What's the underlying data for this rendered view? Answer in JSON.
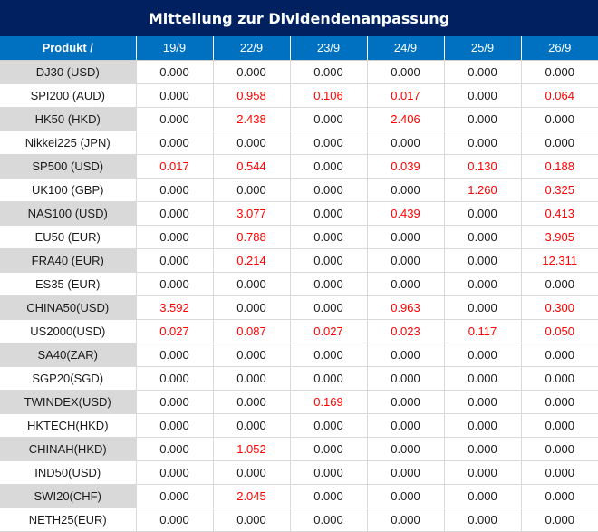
{
  "title": "Mitteilung zur Dividendenanpassung",
  "header": {
    "product_label": "Produkt /",
    "dates": [
      "19/9",
      "22/9",
      "23/9",
      "24/9",
      "25/9",
      "26/9"
    ]
  },
  "colors": {
    "title_bg": "#002060",
    "header_bg": "#0070c0",
    "nonzero_value": "#ff0000",
    "zero_value": "#1a1a1a",
    "product_stripe": "#d9d9d9"
  },
  "rows": [
    {
      "product": "DJ30 (USD)",
      "values": [
        "0.000",
        "0.000",
        "0.000",
        "0.000",
        "0.000",
        "0.000"
      ]
    },
    {
      "product": "SPI200 (AUD)",
      "values": [
        "0.000",
        "0.958",
        "0.106",
        "0.017",
        "0.000",
        "0.064"
      ]
    },
    {
      "product": "HK50 (HKD)",
      "values": [
        "0.000",
        "2.438",
        "0.000",
        "2.406",
        "0.000",
        "0.000"
      ]
    },
    {
      "product": "Nikkei225 (JPN)",
      "values": [
        "0.000",
        "0.000",
        "0.000",
        "0.000",
        "0.000",
        "0.000"
      ]
    },
    {
      "product": "SP500 (USD)",
      "values": [
        "0.017",
        "0.544",
        "0.000",
        "0.039",
        "0.130",
        "0.188"
      ]
    },
    {
      "product": "UK100 (GBP)",
      "values": [
        "0.000",
        "0.000",
        "0.000",
        "0.000",
        "1.260",
        "0.325"
      ]
    },
    {
      "product": "NAS100 (USD)",
      "values": [
        "0.000",
        "3.077",
        "0.000",
        "0.439",
        "0.000",
        "0.413"
      ]
    },
    {
      "product": "EU50 (EUR)",
      "values": [
        "0.000",
        "0.788",
        "0.000",
        "0.000",
        "0.000",
        "3.905"
      ]
    },
    {
      "product": "FRA40 (EUR)",
      "values": [
        "0.000",
        "0.214",
        "0.000",
        "0.000",
        "0.000",
        "12.311"
      ]
    },
    {
      "product": "ES35 (EUR)",
      "values": [
        "0.000",
        "0.000",
        "0.000",
        "0.000",
        "0.000",
        "0.000"
      ]
    },
    {
      "product": "CHINA50(USD)",
      "values": [
        "3.592",
        "0.000",
        "0.000",
        "0.963",
        "0.000",
        "0.300"
      ]
    },
    {
      "product": "US2000(USD)",
      "values": [
        "0.027",
        "0.087",
        "0.027",
        "0.023",
        "0.117",
        "0.050"
      ]
    },
    {
      "product": "SA40(ZAR)",
      "values": [
        "0.000",
        "0.000",
        "0.000",
        "0.000",
        "0.000",
        "0.000"
      ]
    },
    {
      "product": "SGP20(SGD)",
      "values": [
        "0.000",
        "0.000",
        "0.000",
        "0.000",
        "0.000",
        "0.000"
      ]
    },
    {
      "product": "TWINDEX(USD)",
      "values": [
        "0.000",
        "0.000",
        "0.169",
        "0.000",
        "0.000",
        "0.000"
      ]
    },
    {
      "product": "HKTECH(HKD)",
      "values": [
        "0.000",
        "0.000",
        "0.000",
        "0.000",
        "0.000",
        "0.000"
      ]
    },
    {
      "product": "CHINAH(HKD)",
      "values": [
        "0.000",
        "1.052",
        "0.000",
        "0.000",
        "0.000",
        "0.000"
      ]
    },
    {
      "product": "IND50(USD)",
      "values": [
        "0.000",
        "0.000",
        "0.000",
        "0.000",
        "0.000",
        "0.000"
      ]
    },
    {
      "product": "SWI20(CHF)",
      "values": [
        "0.000",
        "2.045",
        "0.000",
        "0.000",
        "0.000",
        "0.000"
      ]
    },
    {
      "product": "NETH25(EUR)",
      "values": [
        "0.000",
        "0.000",
        "0.000",
        "0.000",
        "0.000",
        "0.000"
      ]
    }
  ]
}
